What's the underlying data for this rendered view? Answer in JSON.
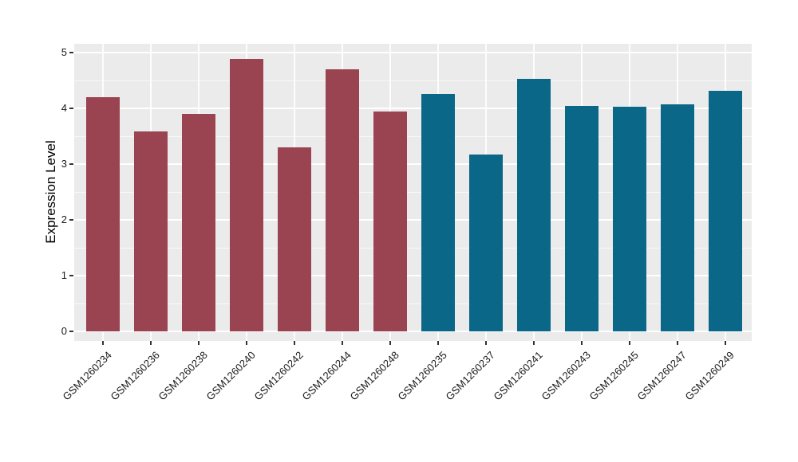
{
  "chart_data": {
    "type": "bar",
    "title": "",
    "xlabel": "",
    "ylabel": "Expression Level",
    "ylim": [
      0,
      5
    ],
    "yticks": [
      0,
      1,
      2,
      3,
      4,
      5
    ],
    "ytick_labels": [
      "0",
      "1",
      "2",
      "3",
      "4",
      "5"
    ],
    "yticks_minor": [
      0.5,
      1.5,
      2.5,
      3.5,
      4.5
    ],
    "grid": "white major and minor horizontal gridlines plus vertical gridline per category on light gray panel",
    "legend_position": "none",
    "panel_background": "#EBEBEB",
    "categories": [
      "GSM1260234",
      "GSM1260236",
      "GSM1260238",
      "GSM1260240",
      "GSM1260242",
      "GSM1260244",
      "GSM1260248",
      "GSM1260235",
      "GSM1260237",
      "GSM1260241",
      "GSM1260243",
      "GSM1260245",
      "GSM1260247",
      "GSM1260249"
    ],
    "values": [
      4.2,
      3.59,
      3.9,
      4.89,
      3.3,
      4.7,
      3.94,
      4.26,
      3.17,
      4.53,
      4.05,
      4.03,
      4.07,
      4.32
    ],
    "bar_group_keys": [
      "red",
      "red",
      "red",
      "red",
      "red",
      "red",
      "red",
      "blue",
      "blue",
      "blue",
      "blue",
      "blue",
      "blue",
      "blue"
    ],
    "group_colors": {
      "red": "#9A4452",
      "blue": "#0B6788"
    },
    "x_label_angle_deg": 45
  }
}
